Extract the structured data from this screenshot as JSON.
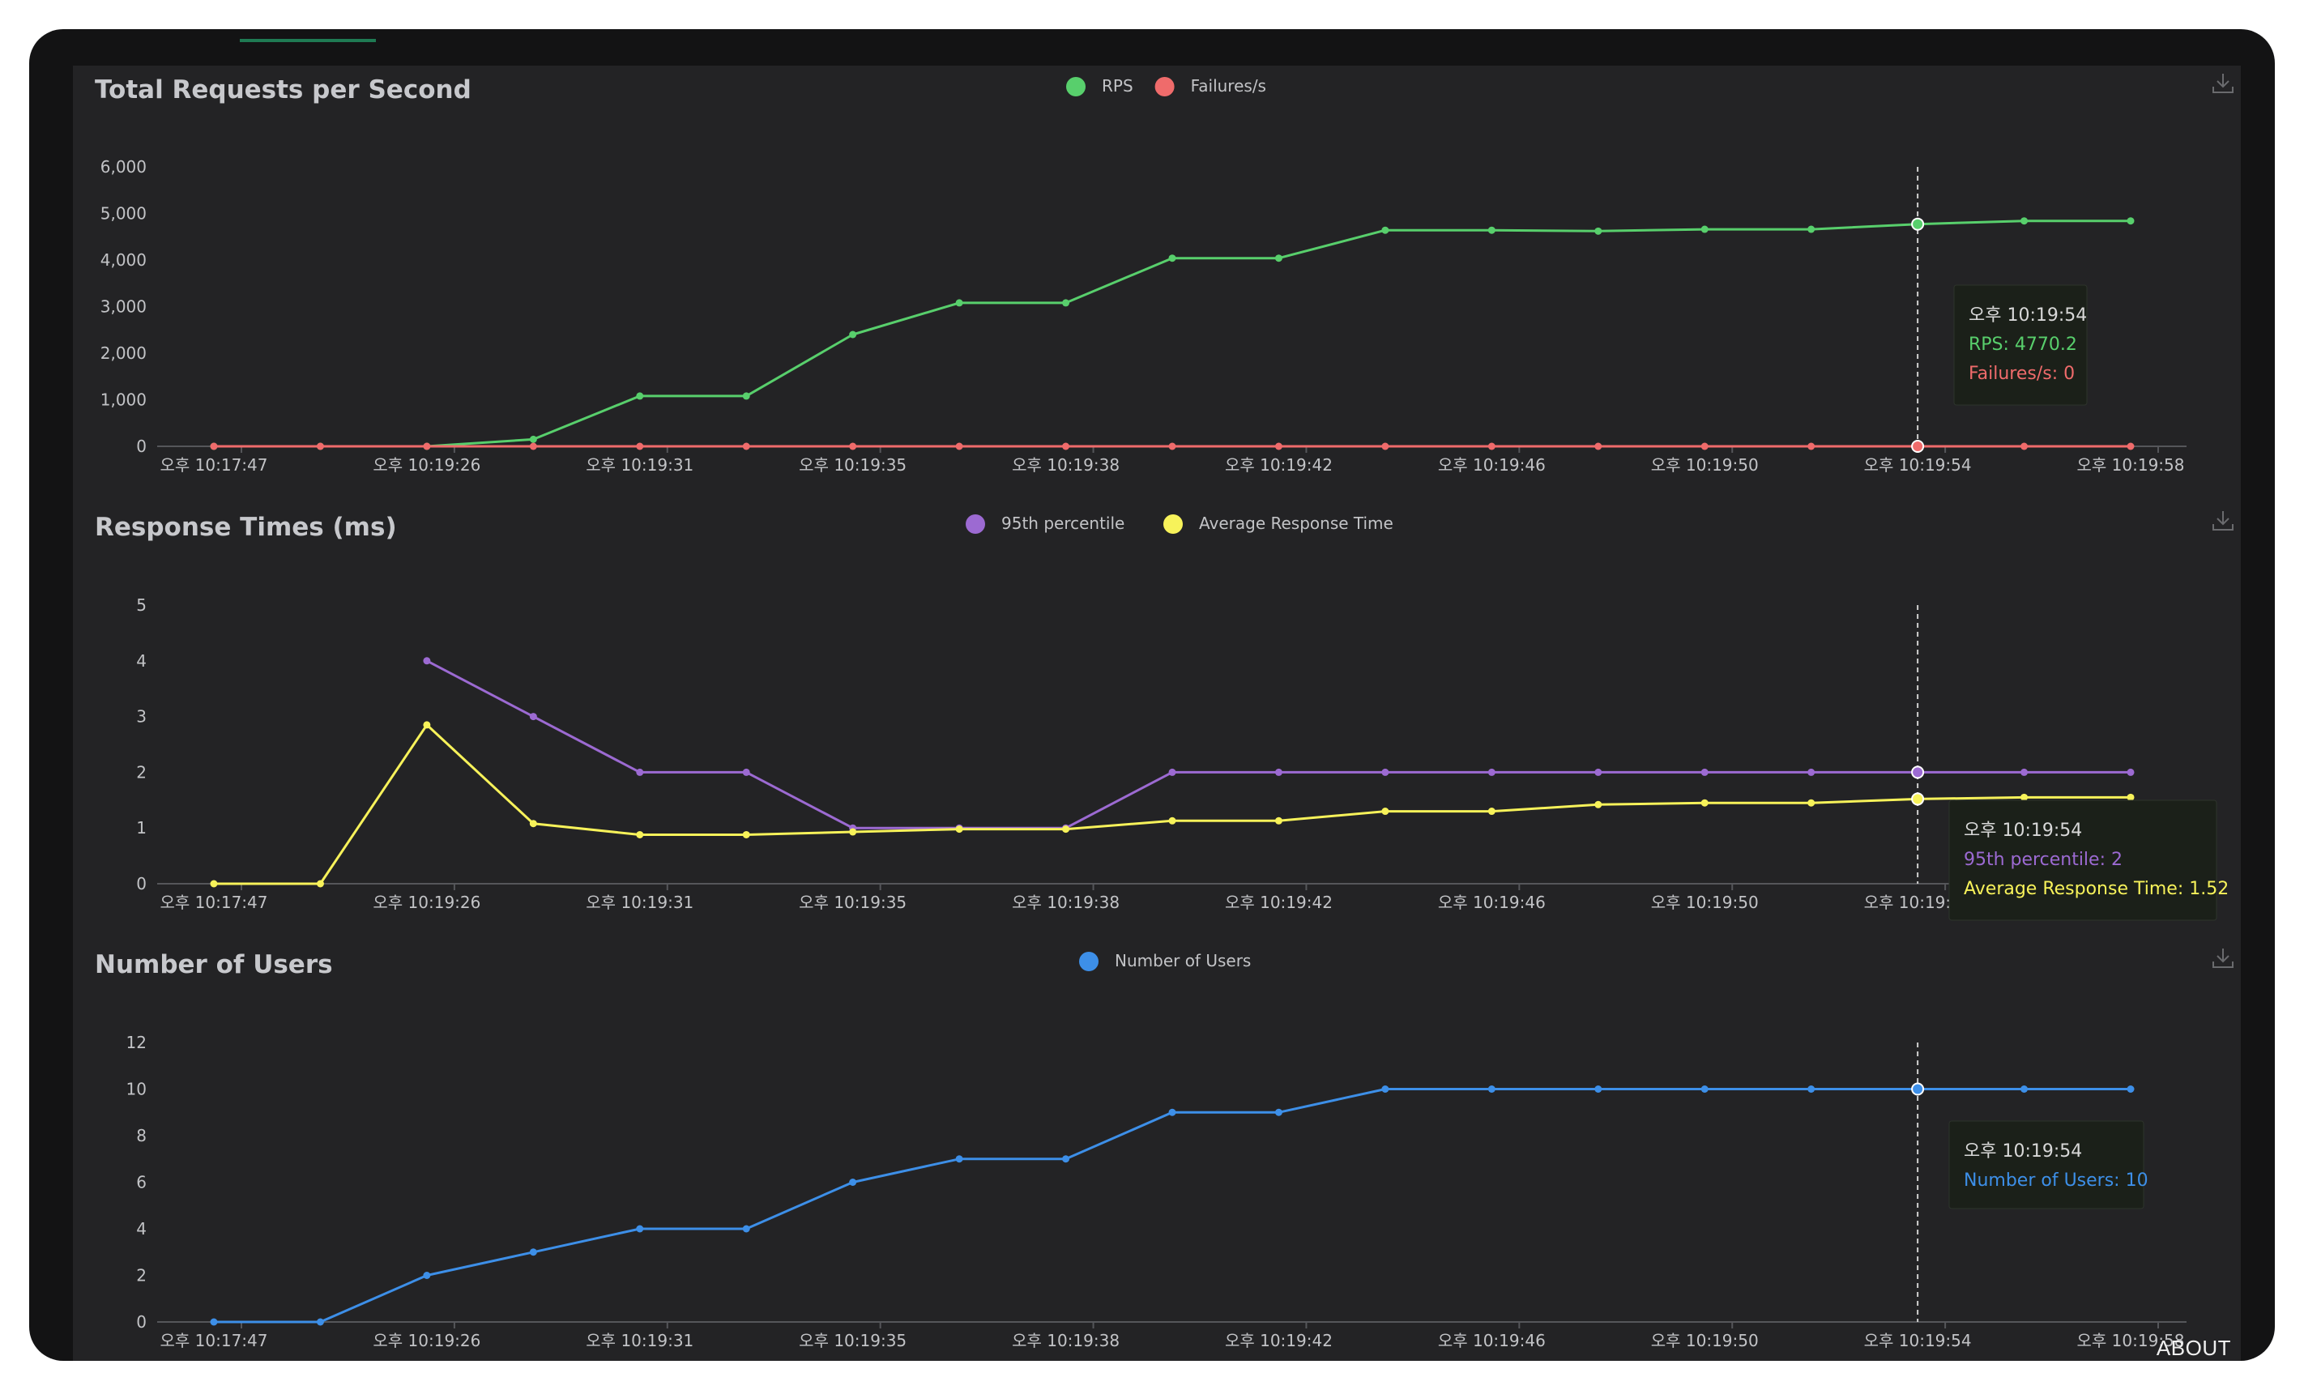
{
  "footer": {
    "about_label": "ABOUT"
  },
  "x_labels": [
    "오후 10:17:47",
    "오후 10:19:26",
    "오후 10:19:31",
    "오후 10:19:35",
    "오후 10:19:38",
    "오후 10:19:42",
    "오후 10:19:46",
    "오후 10:19:50",
    "오후 10:19:54",
    "오후 10:19:58"
  ],
  "chart_data": [
    {
      "id": "rps",
      "type": "line",
      "title": "Total Requests per Second",
      "ylim": [
        0,
        6000
      ],
      "yticks": [
        "0",
        "1,000",
        "2,000",
        "3,000",
        "4,000",
        "5,000",
        "6,000"
      ],
      "ytick_values": [
        0,
        1000,
        2000,
        3000,
        4000,
        5000,
        6000
      ],
      "series": [
        {
          "name": "RPS",
          "color": "#58cf6c",
          "values": [
            0,
            0,
            0,
            150,
            1080,
            1080,
            2400,
            3080,
            3080,
            4040,
            4040,
            4640,
            4640,
            4620,
            4660,
            4660,
            4770.2,
            4840,
            4840
          ]
        },
        {
          "name": "Failures/s",
          "color": "#ef6b6b",
          "values": [
            0,
            0,
            0,
            0,
            0,
            0,
            0,
            0,
            0,
            0,
            0,
            0,
            0,
            0,
            0,
            0,
            0,
            0,
            0
          ]
        }
      ],
      "tooltip": {
        "time": "오후 10:19:54",
        "lines": [
          "RPS: 4770.2",
          "Failures/s: 0"
        ]
      }
    },
    {
      "id": "rt",
      "type": "line",
      "title": "Response Times (ms)",
      "ylim": [
        0,
        5
      ],
      "yticks": [
        "0",
        "1",
        "2",
        "3",
        "4",
        "5"
      ],
      "ytick_values": [
        0,
        1,
        2,
        3,
        4,
        5
      ],
      "series": [
        {
          "name": "95th percentile",
          "color": "#9c6ad2",
          "values": [
            null,
            null,
            4,
            3,
            2,
            2,
            1,
            1,
            1,
            2,
            2,
            2,
            2,
            2,
            2,
            2,
            2,
            2,
            2
          ]
        },
        {
          "name": "Average Response Time",
          "color": "#f7f25a",
          "values": [
            0,
            0,
            2.85,
            1.08,
            0.88,
            0.88,
            0.93,
            0.98,
            0.98,
            1.13,
            1.13,
            1.3,
            1.3,
            1.42,
            1.45,
            1.45,
            1.52,
            1.55,
            1.55
          ]
        }
      ],
      "tooltip": {
        "time": "오후 10:19:54",
        "lines": [
          "95th percentile: 2",
          "Average Response Time: 1.52"
        ]
      }
    },
    {
      "id": "users",
      "type": "line",
      "title": "Number of Users",
      "ylim": [
        0,
        12
      ],
      "yticks": [
        "0",
        "2",
        "4",
        "6",
        "8",
        "10",
        "12"
      ],
      "ytick_values": [
        0,
        2,
        4,
        6,
        8,
        10,
        12
      ],
      "series": [
        {
          "name": "Number of Users",
          "color": "#3d8fe8",
          "values": [
            0,
            0,
            2,
            3,
            4,
            4,
            6,
            7,
            7,
            9,
            9,
            10,
            10,
            10,
            10,
            10,
            10,
            10,
            10
          ]
        }
      ],
      "tooltip": {
        "time": "오후 10:19:54",
        "lines": [
          "Number of Users: 10"
        ]
      }
    }
  ]
}
